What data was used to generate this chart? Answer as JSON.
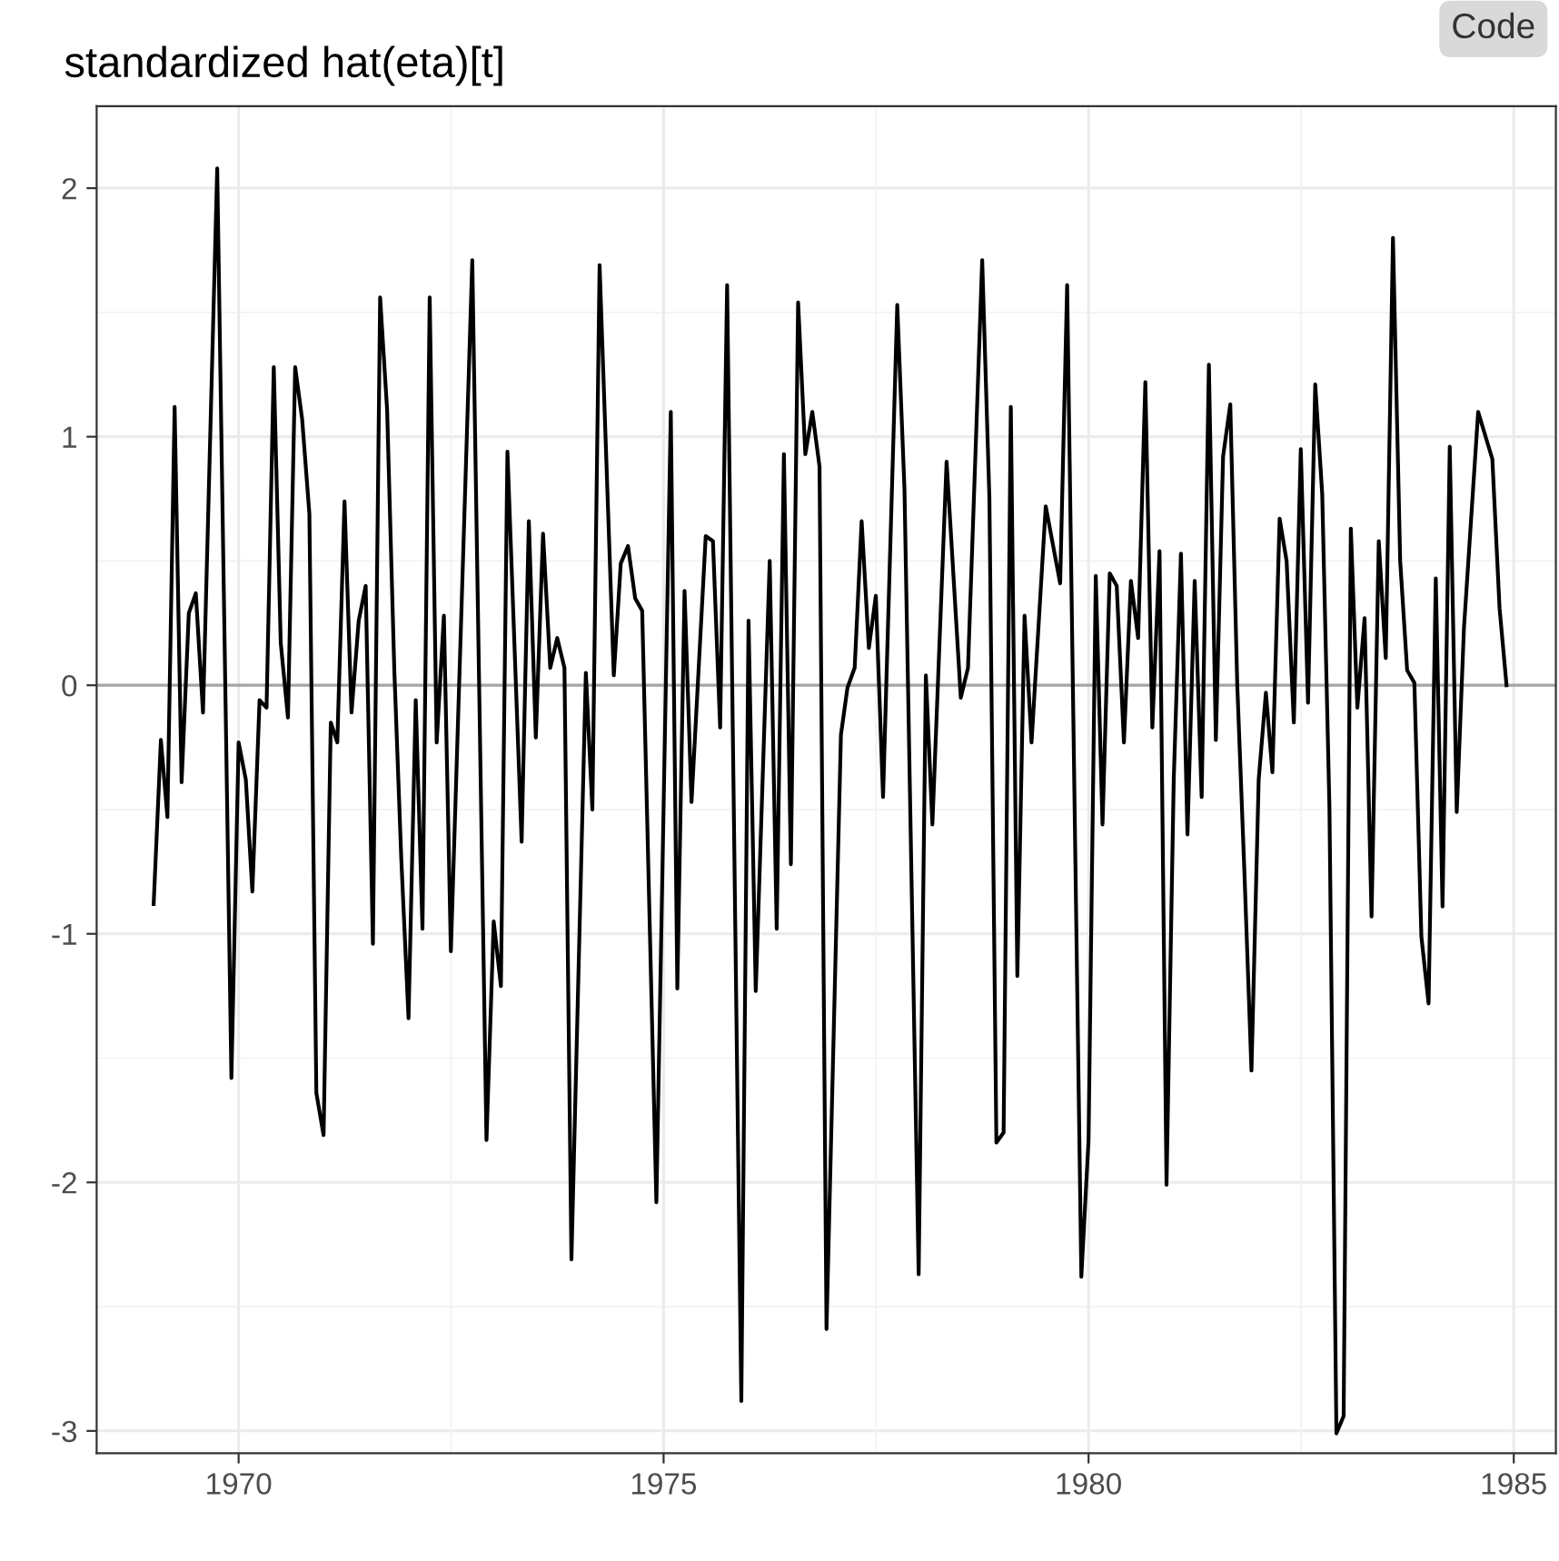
{
  "chart_data": {
    "type": "line",
    "title": "standardized hat(eta)[t]",
    "annotations": [
      "Code"
    ],
    "x": [
      "1969-01",
      "1969-02",
      "1969-03",
      "1969-04",
      "1969-05",
      "1969-06",
      "1969-07",
      "1969-08",
      "1969-10",
      "1969-12",
      "1970-01",
      "1970-02",
      "1970-03",
      "1970-04",
      "1970-05",
      "1970-06",
      "1970-07",
      "1970-08",
      "1970-09",
      "1970-10",
      "1970-11",
      "1970-12",
      "1971-01",
      "1971-02",
      "1971-03",
      "1971-04",
      "1971-05",
      "1971-06",
      "1971-07",
      "1971-08",
      "1971-09",
      "1971-10",
      "1971-11",
      "1971-12",
      "1972-01",
      "1972-02",
      "1972-03",
      "1972-04",
      "1972-05",
      "1972-06",
      "1972-07",
      "1972-10",
      "1972-12",
      "1973-01",
      "1973-02",
      "1973-03",
      "1973-05",
      "1973-06",
      "1973-07",
      "1973-08",
      "1973-09",
      "1973-10",
      "1973-11",
      "1973-12",
      "1974-02",
      "1974-03",
      "1974-04",
      "1974-06",
      "1974-07",
      "1974-08",
      "1974-09",
      "1974-10",
      "1974-12",
      "1975-02",
      "1975-03",
      "1975-04",
      "1975-05",
      "1975-07",
      "1975-08",
      "1975-09",
      "1975-10",
      "1975-12",
      "1976-01",
      "1976-02",
      "1976-04",
      "1976-05",
      "1976-06",
      "1976-07",
      "1976-08",
      "1976-09",
      "1976-10",
      "1976-11",
      "1976-12",
      "1977-02",
      "1977-03",
      "1977-04",
      "1977-05",
      "1977-06",
      "1977-07",
      "1977-08",
      "1977-10",
      "1977-11",
      "1978-01",
      "1978-02",
      "1978-03",
      "1978-05",
      "1978-07",
      "1978-08",
      "1978-10",
      "1978-11",
      "1978-12",
      "1979-01",
      "1979-02",
      "1979-03",
      "1979-04",
      "1979-05",
      "1979-07",
      "1979-09",
      "1979-10",
      "1979-12",
      "1980-01",
      "1980-02",
      "1980-03",
      "1980-04",
      "1980-05",
      "1980-06",
      "1980-07",
      "1980-08",
      "1980-09",
      "1980-10",
      "1980-11",
      "1980-12",
      "1981-01",
      "1981-02",
      "1981-03",
      "1981-04",
      "1981-05",
      "1981-06",
      "1981-07",
      "1981-08",
      "1981-09",
      "1981-10",
      "1981-11",
      "1981-12",
      "1982-01",
      "1982-02",
      "1982-03",
      "1982-04",
      "1982-05",
      "1982-06",
      "1982-07",
      "1982-08",
      "1982-09",
      "1982-10",
      "1982-11",
      "1982-12",
      "1983-01",
      "1983-02",
      "1983-03",
      "1983-04",
      "1983-05",
      "1983-06",
      "1983-07",
      "1983-08",
      "1983-09",
      "1983-10",
      "1983-11",
      "1983-12",
      "1984-01",
      "1984-02",
      "1984-03",
      "1984-04",
      "1984-05",
      "1984-06",
      "1984-08",
      "1984-10",
      "1984-11",
      "1984-12"
    ],
    "series": [
      {
        "color": "#000000",
        "values": [
          -0.88,
          -0.22,
          -0.53,
          1.12,
          -0.39,
          0.29,
          0.37,
          -0.11,
          2.08,
          -1.58,
          -0.23,
          -0.38,
          -0.83,
          -0.06,
          -0.09,
          1.28,
          0.17,
          -0.13,
          1.28,
          1.07,
          0.69,
          -1.64,
          -1.81,
          -0.15,
          -0.23,
          0.74,
          -0.11,
          0.26,
          0.4,
          -1.04,
          1.56,
          1.11,
          0.06,
          -0.7,
          -1.34,
          -0.06,
          -0.98,
          1.56,
          -0.23,
          0.28,
          -1.07,
          1.71,
          -1.83,
          -0.95,
          -1.21,
          0.94,
          -0.63,
          0.66,
          -0.21,
          0.61,
          0.07,
          0.19,
          0.07,
          -2.31,
          0.05,
          -0.5,
          1.69,
          0.04,
          0.49,
          0.56,
          0.35,
          0.3,
          -2.08,
          1.1,
          -1.22,
          0.38,
          -0.47,
          0.6,
          0.58,
          -0.17,
          1.61,
          -2.88,
          0.26,
          -1.23,
          0.5,
          -0.98,
          0.93,
          -0.72,
          1.54,
          0.93,
          1.1,
          0.88,
          -2.59,
          -0.2,
          -0.01,
          0.07,
          0.66,
          0.15,
          0.36,
          -0.45,
          1.53,
          0.79,
          -2.37,
          0.04,
          -0.56,
          0.9,
          -0.05,
          0.07,
          1.71,
          0.75,
          -1.84,
          -1.8,
          1.12,
          -1.17,
          0.28,
          -0.23,
          0.72,
          0.41,
          1.61,
          -2.38,
          -1.83,
          0.44,
          -0.56,
          0.45,
          0.4,
          -0.23,
          0.42,
          0.19,
          1.22,
          -0.17,
          0.54,
          -2.01,
          -0.38,
          0.53,
          -0.6,
          0.42,
          -0.45,
          1.29,
          -0.22,
          0.92,
          1.13,
          0.0,
          -0.76,
          -1.55,
          -0.38,
          -0.03,
          -0.35,
          0.67,
          0.5,
          -0.15,
          0.95,
          -0.07,
          1.21,
          0.77,
          -0.49,
          -3.01,
          -2.94,
          0.63,
          -0.09,
          0.27,
          -0.93,
          0.58,
          0.11,
          1.8,
          0.5,
          0.06,
          0.01,
          -1.01,
          -1.28,
          0.43,
          -0.89,
          0.96,
          -0.51,
          0.23,
          1.1,
          0.91,
          0.31,
          0.0
        ]
      }
    ],
    "xlim": [
      "1968-05",
      "1985-07"
    ],
    "xticks": [
      {
        "value": "1970-01",
        "label": "1970"
      },
      {
        "value": "1975-01",
        "label": "1975"
      },
      {
        "value": "1980-01",
        "label": "1980"
      },
      {
        "value": "1985-01",
        "label": "1985"
      }
    ],
    "ylim": [
      -3.09,
      2.33
    ],
    "yticks": [
      -3,
      -2,
      -1,
      0,
      1,
      2
    ],
    "ref_lines": [
      {
        "axis": "y",
        "value": 0,
        "color": "#a6a6a6"
      }
    ],
    "grid": true,
    "line_style": "solid"
  }
}
